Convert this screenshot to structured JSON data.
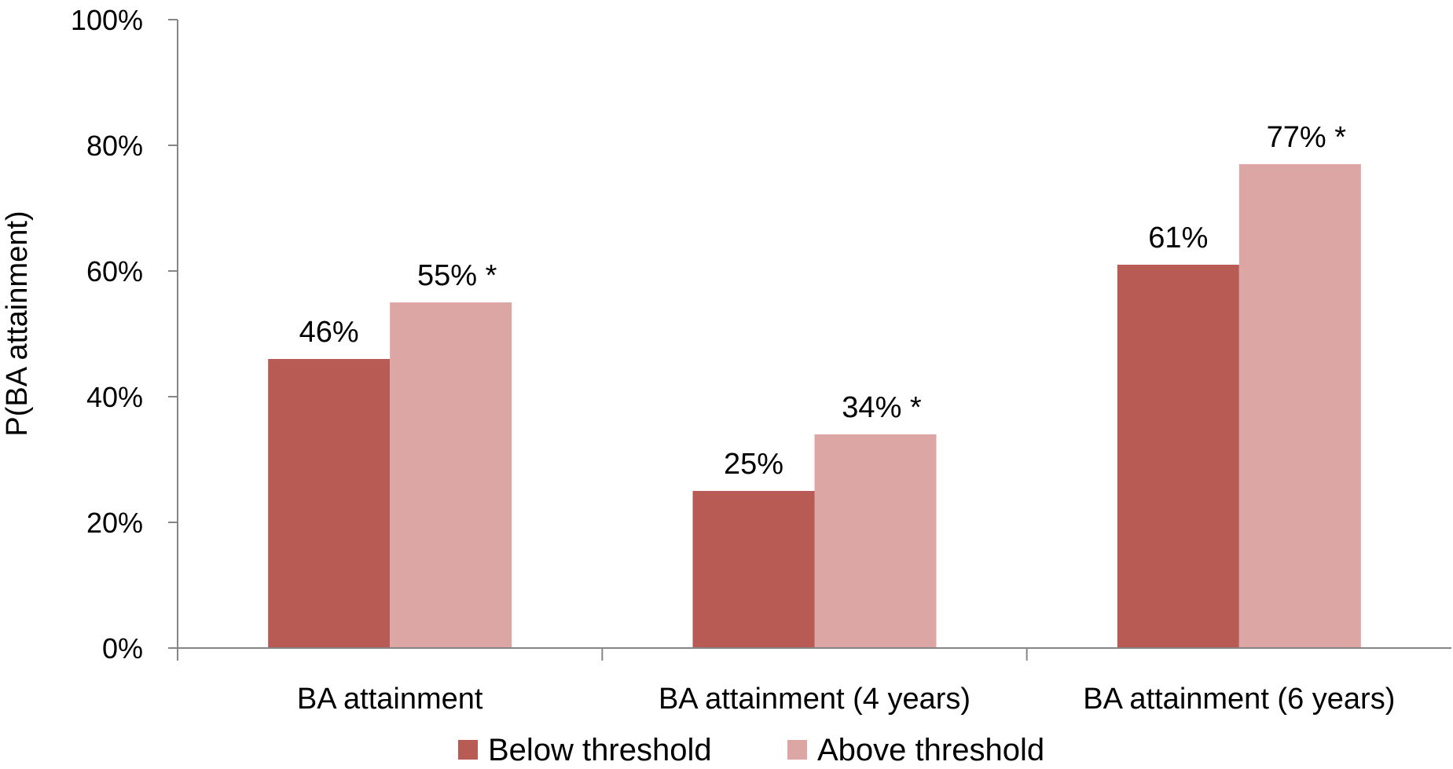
{
  "chart_data": {
    "type": "bar",
    "categories": [
      "BA attainment",
      "BA attainment (4 years)",
      "BA attainment (6 years)"
    ],
    "series": [
      {
        "name": "Below threshold",
        "color": "#b85b55",
        "values": [
          46,
          25,
          61
        ],
        "labels": [
          "46%",
          "25%",
          "61%"
        ]
      },
      {
        "name": "Above threshold",
        "color": "#dba6a3",
        "values": [
          55,
          34,
          77
        ],
        "labels": [
          "55% *",
          "34% *",
          "77% *"
        ]
      }
    ],
    "ylabel": "P(BA attainment)",
    "ylim": [
      0,
      100
    ],
    "yticks": [
      0,
      20,
      40,
      60,
      80,
      100
    ],
    "ytick_labels": [
      "0%",
      "20%",
      "40%",
      "60%",
      "80%",
      "100%"
    ],
    "grid": false,
    "legend_position": "bottom"
  }
}
